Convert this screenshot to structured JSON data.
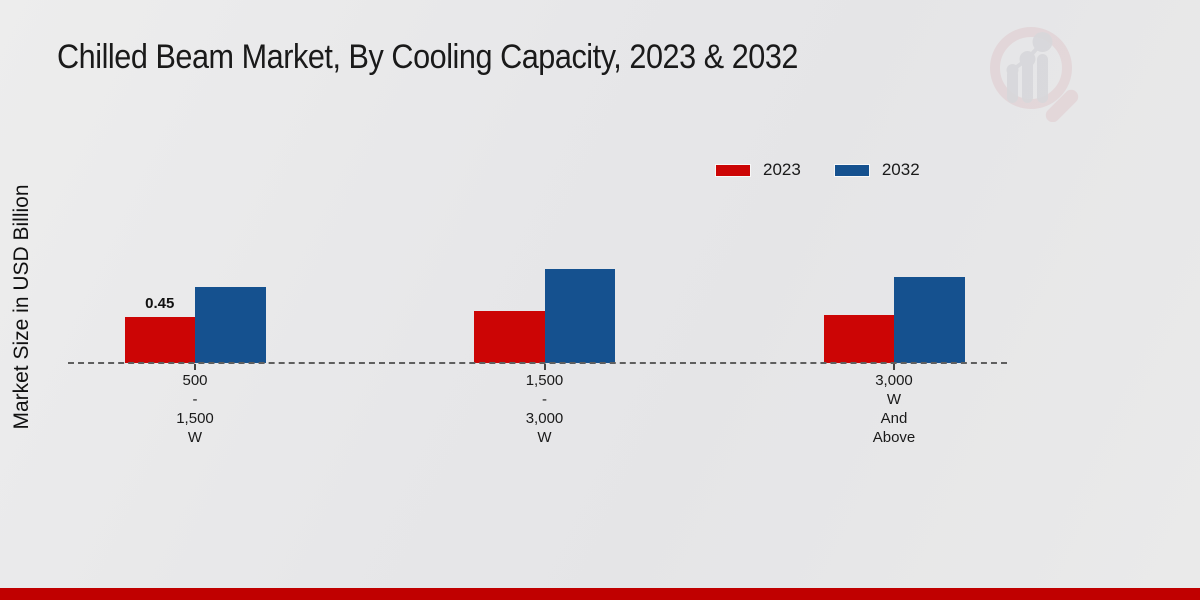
{
  "chart_data": {
    "type": "bar",
    "title": "Chilled Beam Market, By Cooling Capacity, 2023 & 2032",
    "ylabel": "Market Size in USD Billion",
    "xlabel": "",
    "categories": [
      {
        "lines": [
          "500",
          "-",
          "1,500",
          "W"
        ],
        "text": "500 - 1,500 W"
      },
      {
        "lines": [
          "1,500",
          "-",
          "3,000",
          "W"
        ],
        "text": "1,500 - 3,000 W"
      },
      {
        "lines": [
          "3,000",
          "W",
          "And",
          "Above"
        ],
        "text": "3,000 W And Above"
      }
    ],
    "series": [
      {
        "name": "2023",
        "color": "#cc0505",
        "values": [
          0.45,
          0.51,
          0.47
        ]
      },
      {
        "name": "2032",
        "color": "#15518f",
        "values": [
          0.75,
          0.92,
          0.84
        ]
      }
    ],
    "value_labels": [
      {
        "series_index": 0,
        "category_index": 0,
        "text": "0.45"
      }
    ],
    "legend_position": "top-right",
    "baseline_style": "dashed",
    "grid": false,
    "ylim": [
      0,
      1.0
    ]
  },
  "colors": {
    "footer_red": "#c00000",
    "bar_red": "#cc0505",
    "bar_blue": "#15518f",
    "baseline_gray": "#5f5f5f"
  },
  "icons": {
    "logo": "magnifier-growth-chart-watermark-icon"
  }
}
